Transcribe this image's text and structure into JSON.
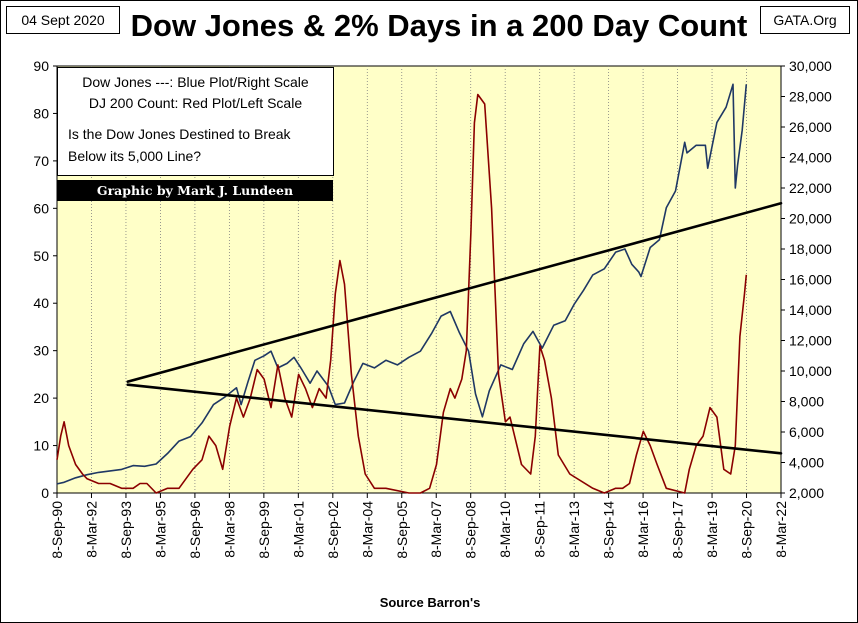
{
  "header": {
    "date": "04 Sept 2020",
    "site": "GATA.Org",
    "title": "Dow Jones & 2% Days in a 200 Day Count"
  },
  "notes": {
    "line1": "Dow Jones ---: Blue Plot/Right Scale",
    "line2": "DJ 200 Count: Red Plot/Left Scale",
    "question1": "Is the Dow Jones Destined to Break",
    "question2": "Below its 5,000 Line?",
    "credit": "Graphic by Mark J. Lundeen"
  },
  "source": "Source Barron's",
  "colors": {
    "plot_bg": "#ffffc8",
    "dow": "#1f3864",
    "count": "#8b0000",
    "trend": "#000000"
  },
  "chart_data": {
    "type": "line",
    "title": "Dow Jones & 2% Days in a 200 Day Count",
    "xlabel": "Source Barron's",
    "x_range": [
      1990.69,
      2022.19
    ],
    "x_ticks": [
      "8-Sep-90",
      "8-Mar-92",
      "8-Sep-93",
      "8-Mar-95",
      "8-Sep-96",
      "8-Mar-98",
      "8-Sep-99",
      "8-Mar-01",
      "8-Sep-02",
      "8-Mar-04",
      "8-Sep-05",
      "8-Mar-07",
      "8-Sep-08",
      "8-Mar-10",
      "8-Sep-11",
      "8-Mar-13",
      "8-Sep-14",
      "8-Mar-16",
      "8-Sep-17",
      "8-Mar-19",
      "8-Sep-20",
      "8-Mar-22"
    ],
    "left_axis": {
      "label": "DJ 200 Count",
      "min": 0,
      "max": 90,
      "ticks": [
        0,
        10,
        20,
        30,
        40,
        50,
        60,
        70,
        80,
        90
      ]
    },
    "right_axis": {
      "label": "Dow Jones",
      "min": 2000,
      "max": 30000,
      "ticks": [
        "2,000",
        "4,000",
        "6,000",
        "8,000",
        "10,000",
        "12,000",
        "14,000",
        "16,000",
        "18,000",
        "20,000",
        "22,000",
        "24,000",
        "26,000",
        "28,000",
        "30,000"
      ]
    },
    "series": [
      {
        "name": "Dow Jones",
        "axis": "right",
        "x": [
          1990.69,
          1991.0,
          1991.5,
          1992.0,
          1992.5,
          1993.0,
          1993.5,
          1994.0,
          1994.5,
          1995.0,
          1995.5,
          1996.0,
          1996.5,
          1997.0,
          1997.5,
          1998.0,
          1998.5,
          1998.7,
          1999.0,
          1999.3,
          1999.7,
          2000.0,
          2000.3,
          2000.7,
          2001.0,
          2001.3,
          2001.7,
          2002.0,
          2002.5,
          2002.8,
          2003.2,
          2003.6,
          2004.0,
          2004.5,
          2005.0,
          2005.5,
          2006.0,
          2006.5,
          2007.0,
          2007.4,
          2007.8,
          2008.2,
          2008.6,
          2008.9,
          2009.2,
          2009.5,
          2010.0,
          2010.5,
          2011.0,
          2011.4,
          2011.8,
          2012.3,
          2012.8,
          2013.2,
          2013.6,
          2014.0,
          2014.5,
          2015.0,
          2015.4,
          2015.7,
          2016.0,
          2016.1,
          2016.5,
          2016.9,
          2017.2,
          2017.6,
          2018.0,
          2018.1,
          2018.5,
          2018.9,
          2019.0,
          2019.4,
          2019.8,
          2020.1,
          2020.2,
          2020.3,
          2020.5,
          2020.68
        ],
        "y": [
          2600,
          2700,
          3000,
          3200,
          3350,
          3450,
          3550,
          3800,
          3750,
          3900,
          4600,
          5400,
          5700,
          6600,
          7800,
          8300,
          8900,
          7800,
          9300,
          10700,
          11000,
          11300,
          10200,
          10500,
          10900,
          10200,
          9200,
          10000,
          9000,
          7800,
          7900,
          9300,
          10500,
          10200,
          10700,
          10400,
          10900,
          11300,
          12500,
          13600,
          13900,
          12500,
          11300,
          8500,
          7000,
          8700,
          10400,
          10100,
          11800,
          12600,
          11500,
          13000,
          13300,
          14400,
          15300,
          16300,
          16700,
          17800,
          18000,
          17000,
          16500,
          16200,
          18100,
          18600,
          20700,
          21800,
          25000,
          24300,
          24800,
          24800,
          23300,
          26300,
          27300,
          28800,
          22000,
          23500,
          25800,
          28800
        ]
      },
      {
        "name": "DJ 200 Count",
        "axis": "left",
        "x": [
          1990.69,
          1990.85,
          1991.0,
          1991.2,
          1991.5,
          1991.8,
          1992.0,
          1992.5,
          1993.0,
          1993.5,
          1994.0,
          1994.3,
          1994.6,
          1995.0,
          1995.5,
          1996.0,
          1996.3,
          1996.6,
          1997.0,
          1997.3,
          1997.6,
          1997.9,
          1998.2,
          1998.5,
          1998.8,
          1999.1,
          1999.4,
          1999.7,
          2000.0,
          2000.3,
          2000.6,
          2000.9,
          2001.2,
          2001.5,
          2001.8,
          2002.1,
          2002.4,
          2002.6,
          2002.8,
          2003.0,
          2003.2,
          2003.5,
          2003.8,
          2004.1,
          2004.5,
          2005.0,
          2006.0,
          2006.5,
          2006.9,
          2007.2,
          2007.5,
          2007.8,
          2008.0,
          2008.3,
          2008.5,
          2008.7,
          2008.85,
          2009.0,
          2009.3,
          2009.6,
          2009.9,
          2010.2,
          2010.4,
          2010.6,
          2010.9,
          2011.3,
          2011.5,
          2011.7,
          2011.9,
          2012.2,
          2012.5,
          2013.0,
          2014.0,
          2014.5,
          2015.0,
          2015.3,
          2015.6,
          2015.9,
          2016.2,
          2016.5,
          2016.8,
          2017.2,
          2018.0,
          2018.2,
          2018.5,
          2018.8,
          2019.1,
          2019.4,
          2019.7,
          2020.0,
          2020.2,
          2020.4,
          2020.6,
          2020.68
        ],
        "y": [
          7,
          12,
          15,
          10,
          6,
          4,
          3,
          2,
          2,
          1,
          1,
          2,
          2,
          0,
          1,
          1,
          3,
          5,
          7,
          12,
          10,
          5,
          14,
          20,
          16,
          20,
          26,
          24,
          18,
          27,
          20,
          16,
          25,
          22,
          18,
          22,
          20,
          28,
          42,
          49,
          44,
          25,
          12,
          4,
          1,
          1,
          0,
          0,
          1,
          6,
          17,
          22,
          20,
          24,
          30,
          55,
          78,
          84,
          82,
          60,
          25,
          15,
          16,
          12,
          6,
          4,
          12,
          31,
          28,
          20,
          8,
          4,
          1,
          0,
          1,
          1,
          2,
          8,
          13,
          10,
          6,
          1,
          0,
          5,
          10,
          12,
          18,
          16,
          5,
          4,
          10,
          33,
          42,
          46
        ]
      }
    ],
    "trendlines": [
      {
        "name": "upper-trend",
        "axis": "right",
        "x": [
          1993.77,
          2022.19
        ],
        "y": [
          9300,
          21000
        ]
      },
      {
        "name": "lower-trend",
        "axis": "right",
        "x": [
          1993.77,
          2022.19
        ],
        "y": [
          9100,
          4600
        ]
      }
    ]
  }
}
